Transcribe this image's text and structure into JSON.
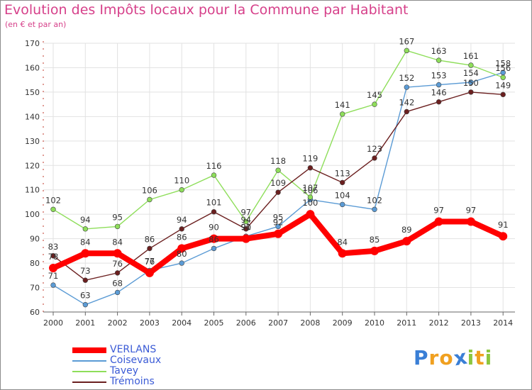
{
  "header": {
    "title": "Evolution des Impôts locaux pour la Commune par Habitant",
    "subtitle": "(en € et par an)"
  },
  "logo": {
    "letters": [
      "P",
      "r",
      "o",
      "x",
      "i",
      "t",
      "i"
    ],
    "colors": [
      "#3a7fd6",
      "#f0a020",
      "#f0a020",
      "#3a7fd6",
      "#8cc63f",
      "#f0a020",
      "#8cc63f"
    ]
  },
  "chart_data": {
    "type": "line",
    "title": "Evolution des Impôts locaux pour la Commune par Habitant",
    "subtitle": "(en € et par an)",
    "xlabel": "",
    "ylabel": "",
    "x": [
      2000,
      2001,
      2002,
      2003,
      2004,
      2005,
      2006,
      2007,
      2008,
      2009,
      2010,
      2011,
      2012,
      2013,
      2014
    ],
    "ylim": [
      60,
      170
    ],
    "yticks": [
      60,
      70,
      80,
      90,
      100,
      110,
      120,
      130,
      140,
      150,
      160,
      170
    ],
    "grid": true,
    "legend_position": "bottom-left",
    "series": [
      {
        "name": "VERLANS",
        "color": "#ff0000",
        "values": [
          78,
          84,
          84,
          76,
          86,
          90,
          90,
          92,
          100,
          84,
          85,
          89,
          97,
          97,
          91
        ]
      },
      {
        "name": "Coisevaux",
        "color": "#5b9bd5",
        "values": [
          71,
          63,
          68,
          77,
          80,
          86,
          91,
          95,
          106,
          104,
          102,
          152,
          153,
          154,
          158
        ]
      },
      {
        "name": "Tavey",
        "color": "#8ede5a",
        "values": [
          102,
          94,
          95,
          106,
          110,
          116,
          97,
          118,
          107,
          141,
          145,
          167,
          163,
          161,
          156
        ]
      },
      {
        "name": "Trémoins",
        "color": "#6b1f1f",
        "values": [
          83,
          73,
          76,
          86,
          94,
          101,
          94,
          109,
          119,
          113,
          123,
          142,
          146,
          150,
          149
        ]
      }
    ]
  }
}
